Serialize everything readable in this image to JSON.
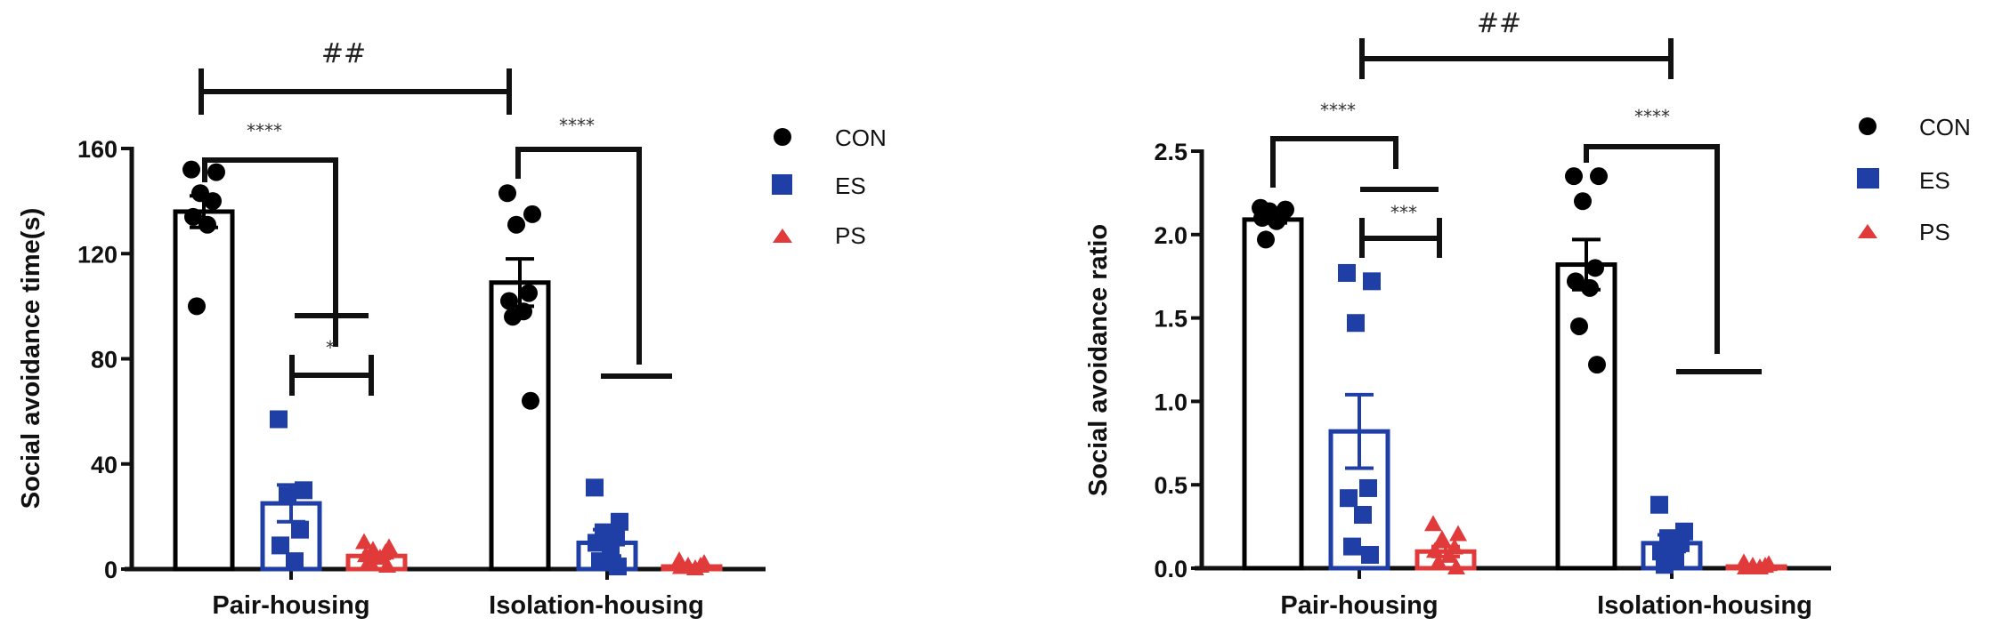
{
  "chart_data": [
    {
      "type": "bar",
      "ylabel": "Social avoidance time(s)",
      "ylim": [
        0,
        160
      ],
      "yticks": [
        "0",
        "40",
        "80",
        "120",
        "160"
      ],
      "ytick_values": [
        0,
        40,
        80,
        120,
        160
      ],
      "categories": [
        "Pair-housing",
        "Isolation-housing"
      ],
      "legend": {
        "placement": "right",
        "entries": [
          "CON",
          "ES",
          "PS"
        ]
      },
      "series": [
        {
          "name": "CON",
          "color": "#000000",
          "marker": "circle",
          "means": [
            136,
            109
          ],
          "sem": [
            6,
            9
          ],
          "points": [
            [
              152,
              151,
              143,
              140,
              134,
              131,
              100
            ],
            [
              143,
              135,
              131,
              105,
              102,
              98,
              96,
              64
            ]
          ]
        },
        {
          "name": "ES",
          "color": "#1f3ea6",
          "marker": "square",
          "means": [
            25,
            10
          ],
          "sem": [
            7,
            5
          ],
          "points": [
            [
              57,
              30,
              28,
              15,
              9,
              3
            ],
            [
              31,
              18,
              14,
              12,
              10,
              6,
              3,
              1
            ]
          ]
        },
        {
          "name": "PS",
          "color": "#e03a3a",
          "marker": "triangle",
          "means": [
            5,
            1
          ],
          "sem": [
            1,
            0.3
          ],
          "points": [
            [
              10,
              8,
              7,
              6,
              5,
              4,
              3,
              1
            ],
            [
              3,
              2,
              1,
              1,
              0.5,
              0
            ]
          ]
        }
      ],
      "annotations": {
        "hash": "##",
        "stars_pair_con_ps": "****",
        "stars_pair_es_ps": "*",
        "stars_iso_con_ps": "****"
      }
    },
    {
      "type": "bar",
      "ylabel": "Social avoidance ratio",
      "ylim": [
        0,
        2.5
      ],
      "yticks": [
        "0.0",
        "0.5",
        "1.0",
        "1.5",
        "2.0",
        "2.5"
      ],
      "ytick_values": [
        0,
        0.5,
        1.0,
        1.5,
        2.0,
        2.5
      ],
      "categories": [
        "Pair-housing",
        "Isolation-housing"
      ],
      "legend": {
        "placement": "right",
        "entries": [
          "CON",
          "ES",
          "PS"
        ]
      },
      "series": [
        {
          "name": "CON",
          "color": "#000000",
          "marker": "circle",
          "means": [
            2.09,
            1.82
          ],
          "sem": [
            0.02,
            0.15
          ],
          "points": [
            [
              2.16,
              2.15,
              2.14,
              2.12,
              2.1,
              2.08,
              1.97
            ],
            [
              2.35,
              2.35,
              2.2,
              1.8,
              1.72,
              1.68,
              1.45,
              1.22
            ]
          ]
        },
        {
          "name": "ES",
          "color": "#1f3ea6",
          "marker": "square",
          "means": [
            0.82,
            0.15
          ],
          "sem": [
            0.22,
            0.05
          ],
          "points": [
            [
              1.77,
              1.72,
              1.47,
              0.48,
              0.42,
              0.32,
              0.13,
              0.08
            ],
            [
              0.38,
              0.22,
              0.18,
              0.15,
              0.1,
              0.06,
              0.02
            ]
          ]
        },
        {
          "name": "PS",
          "color": "#e03a3a",
          "marker": "triangle",
          "means": [
            0.1,
            0.01
          ],
          "sem": [
            0.03,
            0.005
          ],
          "points": [
            [
              0.26,
              0.2,
              0.17,
              0.12,
              0.1,
              0.07,
              0.03,
              0.0
            ],
            [
              0.03,
              0.02,
              0.01,
              0.01,
              0.0,
              0.0
            ]
          ]
        }
      ],
      "annotations": {
        "hash": "##",
        "stars_pair_con_ps": "****",
        "stars_pair_es_ps": "***",
        "stars_iso_con_ps": "****"
      }
    }
  ]
}
